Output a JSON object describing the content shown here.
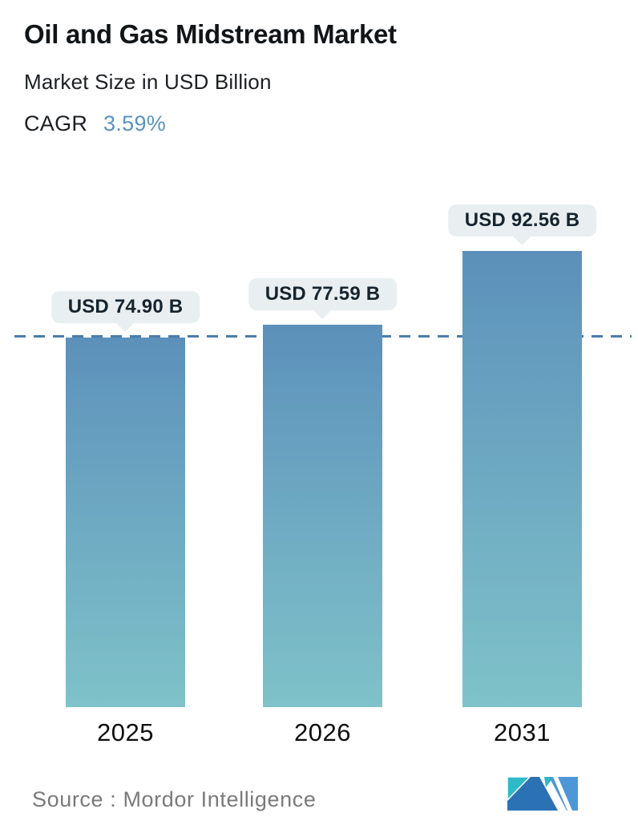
{
  "header": {
    "title": "Oil and Gas Midstream Market",
    "subtitle": "Market Size in USD Billion",
    "cagr_label": "CAGR",
    "cagr_value": "3.59%"
  },
  "chart_data": {
    "type": "bar",
    "title": "Oil and Gas Midstream Market",
    "subtitle": "Market Size in USD Billion",
    "cagr": "3.59%",
    "unit": "USD Billion",
    "categories": [
      "2025",
      "2026",
      "2031"
    ],
    "values": [
      74.9,
      77.59,
      92.56
    ],
    "value_labels": [
      "USD 74.90 B",
      "USD 77.59 B",
      "USD 92.56 B"
    ],
    "ylim": [
      0,
      100
    ],
    "grid": false,
    "legend": "none",
    "reference_line": {
      "value": 74.9,
      "style": "dashed",
      "color": "#4a7dab"
    },
    "bar_gradient_top": "#5b90ba",
    "bar_gradient_bottom": "#7fc2c9",
    "label_bubble_bg": "#e9eff0",
    "cagr_accent_color": "#5b92bd"
  },
  "footer": {
    "source_text": "Source :  Mordor Intelligence",
    "logo_name": "mordor-intelligence-logo",
    "logo_colors": {
      "teal": "#2EB9C9",
      "dark_blue": "#2B72B5",
      "light_blue": "#4D97D7"
    }
  }
}
